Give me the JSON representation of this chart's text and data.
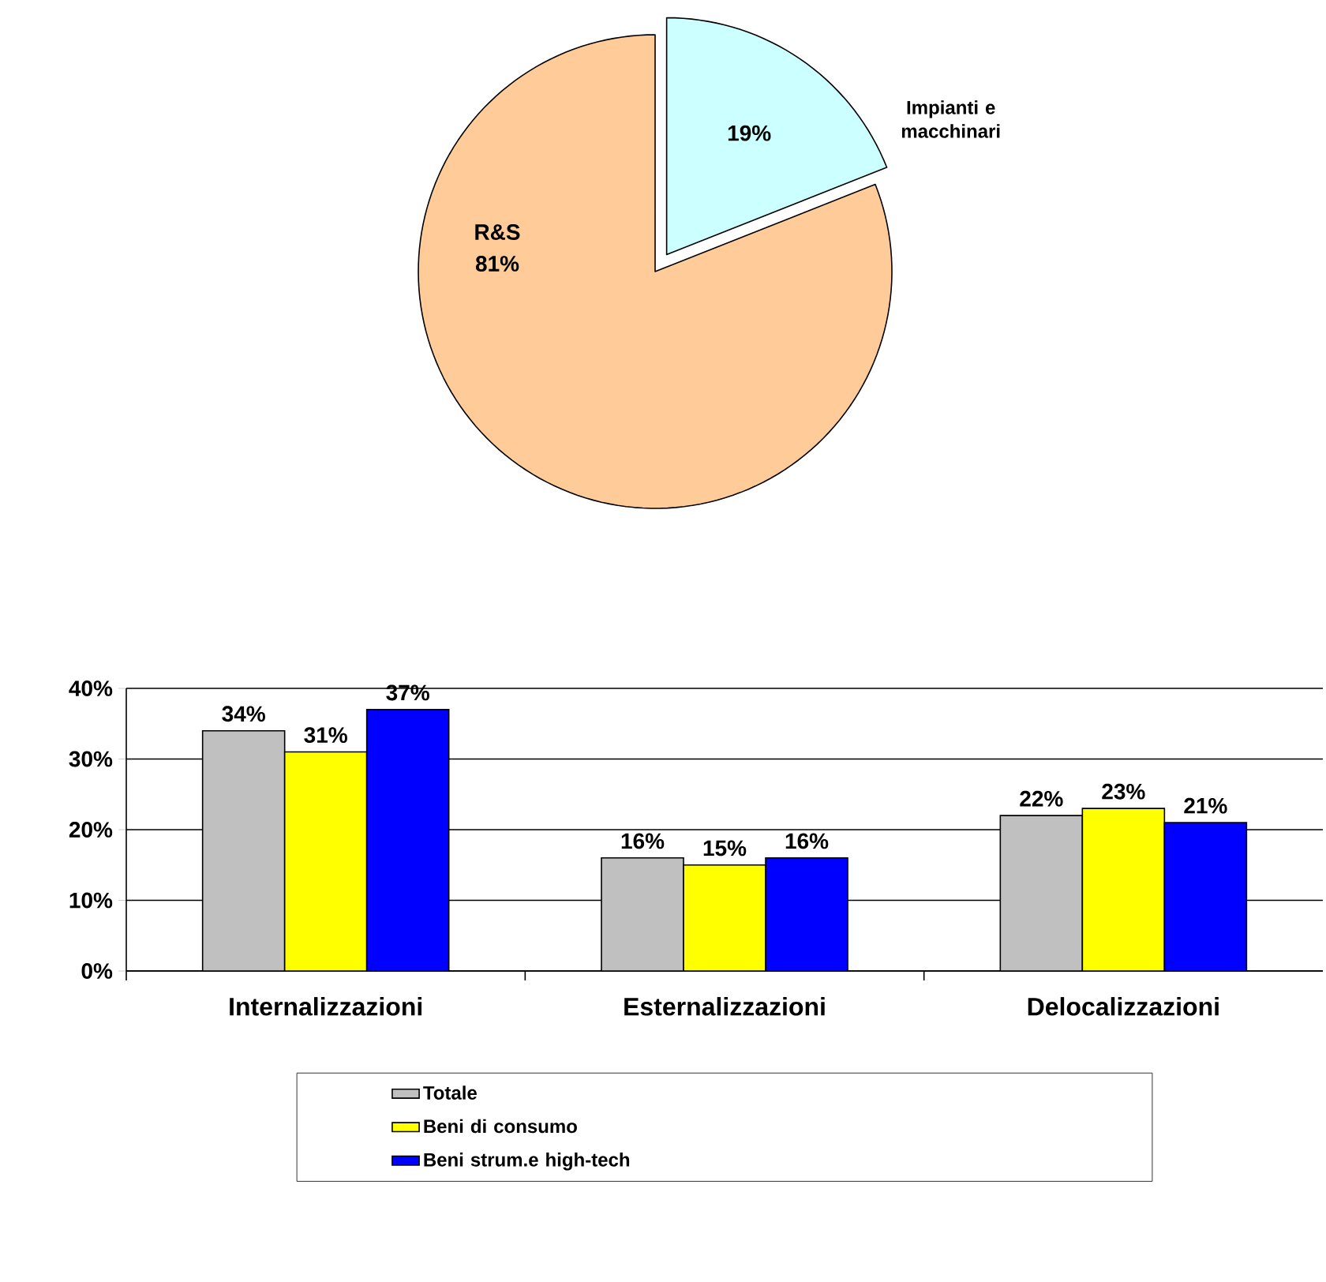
{
  "chart_data": [
    {
      "type": "pie",
      "categories": [
        "Impianti e macchinari",
        "R&S"
      ],
      "values": [
        19,
        81
      ],
      "colors": [
        "#ccffff",
        "#ffcc99"
      ],
      "value_labels": [
        "19%",
        "81%"
      ]
    },
    {
      "type": "bar",
      "categories": [
        "Internalizzazioni",
        "Esternalizzazioni",
        "Delocalizzazioni"
      ],
      "series": [
        {
          "name": "Totale",
          "color": "#c0c0c0",
          "values": [
            34,
            16,
            22
          ],
          "value_labels": [
            "34%",
            "16%",
            "22%"
          ]
        },
        {
          "name": "Beni di consumo",
          "color": "#ffff00",
          "values": [
            31,
            15,
            23
          ],
          "value_labels": [
            "31%",
            "15%",
            "23%"
          ]
        },
        {
          "name": "Beni strum.e high-tech",
          "color": "#0000ff",
          "values": [
            37,
            16,
            21
          ],
          "value_labels": [
            "37%",
            "16%",
            "21%"
          ]
        }
      ],
      "ylim": [
        0,
        40
      ],
      "yticks": [
        {
          "value": 0,
          "label": "0%"
        },
        {
          "value": 10,
          "label": "10%"
        },
        {
          "value": 20,
          "label": "20%"
        },
        {
          "value": 30,
          "label": "30%"
        },
        {
          "value": 40,
          "label": "40%"
        }
      ],
      "grid": "y",
      "legend": "bottom"
    }
  ]
}
